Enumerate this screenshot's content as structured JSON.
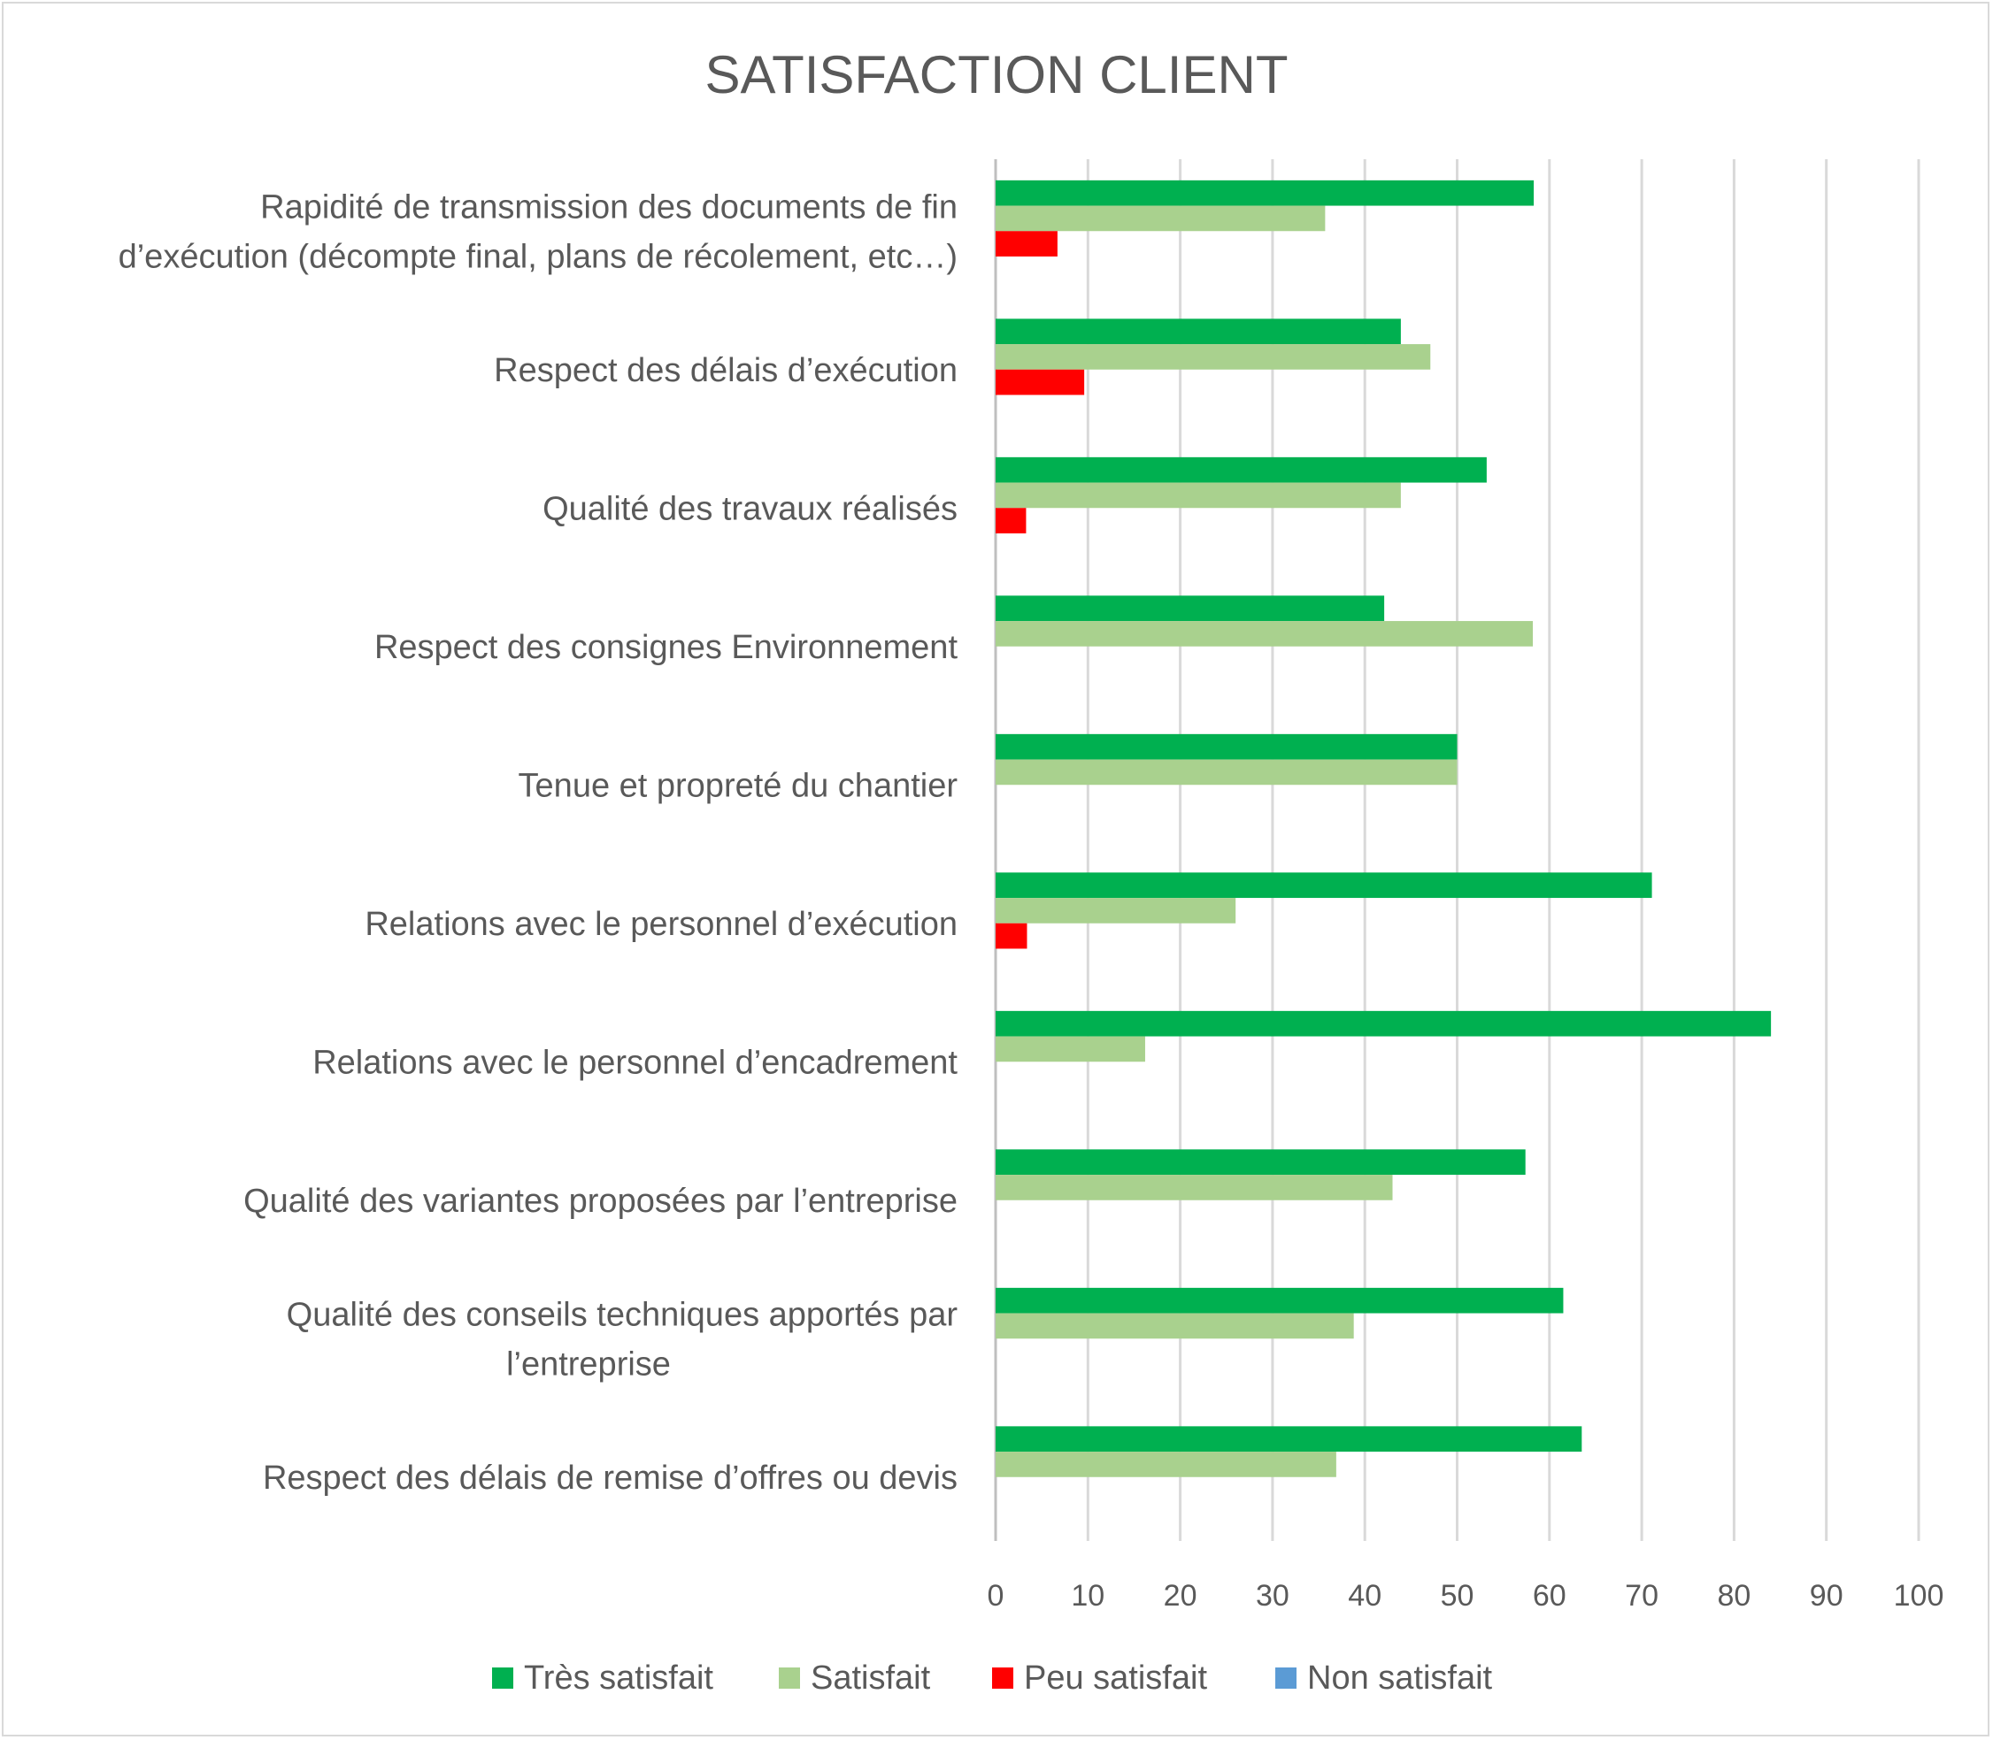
{
  "chart_data": {
    "type": "bar",
    "orientation": "horizontal",
    "title": "SATISFACTION CLIENT",
    "xlabel": "",
    "ylabel": "",
    "xlim": [
      0,
      100
    ],
    "xticks": [
      "0",
      "10",
      "20",
      "30",
      "40",
      "50",
      "60",
      "70",
      "80",
      "90",
      "100"
    ],
    "grid": true,
    "legend_position": "bottom",
    "categories": [
      [
        "Rapidité de transmission des documents de fin",
        "d’exécution (décompte final, plans de récolement, etc…)"
      ],
      [
        "Respect des délais d’exécution"
      ],
      [
        "Qualité des travaux réalisés"
      ],
      [
        "Respect des consignes Environnement"
      ],
      [
        "Tenue et propreté du chantier"
      ],
      [
        "Relations avec le personnel d’exécution"
      ],
      [
        "Relations avec le personnel d’encadrement"
      ],
      [
        "Qualité des variantes proposées par l’entreprise"
      ],
      [
        "Qualité des conseils techniques apportés par",
        "l’entreprise"
      ],
      [
        "Respect des délais de remise d’offres ou devis"
      ]
    ],
    "series": [
      {
        "name": "Très satisfait",
        "color": "#00b050",
        "values": [
          58.3,
          43.9,
          53.2,
          42.1,
          50,
          71.1,
          84,
          57.4,
          61.5,
          63.5
        ]
      },
      {
        "name": "Satisfait",
        "color": "#a9d18e",
        "values": [
          35.7,
          47.1,
          43.9,
          58.2,
          50,
          26,
          16.2,
          43,
          38.8,
          36.9
        ]
      },
      {
        "name": "Peu satisfait",
        "color": "#ff0000",
        "values": [
          6.7,
          9.6,
          3.3,
          0,
          0,
          3.4,
          0,
          0,
          0,
          0
        ]
      },
      {
        "name": "Non satisfait",
        "color": "#5b9bd5",
        "values": [
          0,
          0,
          0,
          0,
          0,
          0,
          0,
          0,
          0,
          0
        ]
      }
    ]
  }
}
